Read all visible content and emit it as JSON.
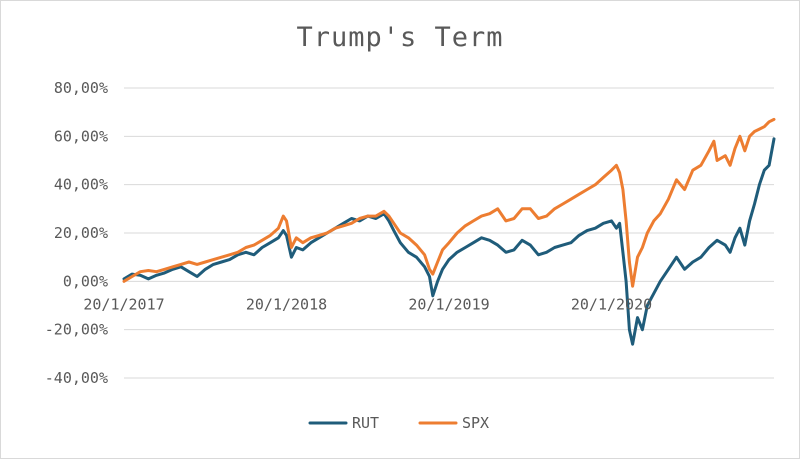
{
  "chart_data": {
    "type": "line",
    "title": "Trump's Term",
    "xlabel": "",
    "ylabel": "",
    "ylim": [
      -40,
      80
    ],
    "y_tick_step": 20,
    "y_tick_labels": [
      "80,00%",
      "60,00%",
      "40,00%",
      "20,00%",
      "0,00%",
      "-20,00%",
      "-40,00%"
    ],
    "x_tick_labels": [
      "20/1/2017",
      "20/1/2018",
      "20/1/2019",
      "20/1/2020"
    ],
    "x_ticks_at_years": [
      0,
      1,
      2,
      3
    ],
    "x_range_years": [
      0,
      4
    ],
    "grid": "horizontal",
    "legend_position": "bottom",
    "series": [
      {
        "name": "RUT",
        "color": "#1f5c7a",
        "points": [
          [
            0.0,
            1.0
          ],
          [
            0.05,
            3.0
          ],
          [
            0.1,
            2.5
          ],
          [
            0.15,
            1.0
          ],
          [
            0.2,
            2.5
          ],
          [
            0.25,
            3.5
          ],
          [
            0.3,
            5.0
          ],
          [
            0.35,
            6.0
          ],
          [
            0.4,
            4.0
          ],
          [
            0.45,
            2.0
          ],
          [
            0.5,
            5.0
          ],
          [
            0.55,
            7.0
          ],
          [
            0.6,
            8.0
          ],
          [
            0.65,
            9.0
          ],
          [
            0.7,
            11.0
          ],
          [
            0.75,
            12.0
          ],
          [
            0.8,
            11.0
          ],
          [
            0.85,
            14.0
          ],
          [
            0.9,
            16.0
          ],
          [
            0.95,
            18.0
          ],
          [
            0.98,
            21.0
          ],
          [
            1.0,
            19.0
          ],
          [
            1.03,
            10.0
          ],
          [
            1.06,
            14.0
          ],
          [
            1.1,
            13.0
          ],
          [
            1.15,
            16.0
          ],
          [
            1.2,
            18.0
          ],
          [
            1.25,
            20.0
          ],
          [
            1.3,
            22.0
          ],
          [
            1.35,
            24.0
          ],
          [
            1.4,
            26.0
          ],
          [
            1.45,
            25.0
          ],
          [
            1.5,
            27.0
          ],
          [
            1.55,
            26.0
          ],
          [
            1.6,
            28.0
          ],
          [
            1.63,
            25.0
          ],
          [
            1.66,
            21.0
          ],
          [
            1.7,
            16.0
          ],
          [
            1.75,
            12.0
          ],
          [
            1.8,
            10.0
          ],
          [
            1.85,
            6.0
          ],
          [
            1.88,
            2.0
          ],
          [
            1.9,
            -6.0
          ],
          [
            1.93,
            0.0
          ],
          [
            1.96,
            5.0
          ],
          [
            2.0,
            9.0
          ],
          [
            2.05,
            12.0
          ],
          [
            2.1,
            14.0
          ],
          [
            2.15,
            16.0
          ],
          [
            2.2,
            18.0
          ],
          [
            2.25,
            17.0
          ],
          [
            2.3,
            15.0
          ],
          [
            2.35,
            12.0
          ],
          [
            2.4,
            13.0
          ],
          [
            2.45,
            17.0
          ],
          [
            2.5,
            15.0
          ],
          [
            2.55,
            11.0
          ],
          [
            2.6,
            12.0
          ],
          [
            2.65,
            14.0
          ],
          [
            2.7,
            15.0
          ],
          [
            2.75,
            16.0
          ],
          [
            2.8,
            19.0
          ],
          [
            2.85,
            21.0
          ],
          [
            2.9,
            22.0
          ],
          [
            2.95,
            24.0
          ],
          [
            3.0,
            25.0
          ],
          [
            3.03,
            22.0
          ],
          [
            3.05,
            24.0
          ],
          [
            3.07,
            12.0
          ],
          [
            3.09,
            0.0
          ],
          [
            3.11,
            -20.0
          ],
          [
            3.13,
            -26.0
          ],
          [
            3.16,
            -15.0
          ],
          [
            3.19,
            -20.0
          ],
          [
            3.22,
            -10.0
          ],
          [
            3.26,
            -5.0
          ],
          [
            3.3,
            0.0
          ],
          [
            3.35,
            5.0
          ],
          [
            3.4,
            10.0
          ],
          [
            3.45,
            5.0
          ],
          [
            3.5,
            8.0
          ],
          [
            3.55,
            10.0
          ],
          [
            3.6,
            14.0
          ],
          [
            3.65,
            17.0
          ],
          [
            3.7,
            15.0
          ],
          [
            3.73,
            12.0
          ],
          [
            3.76,
            18.0
          ],
          [
            3.79,
            22.0
          ],
          [
            3.82,
            15.0
          ],
          [
            3.85,
            25.0
          ],
          [
            3.88,
            32.0
          ],
          [
            3.91,
            40.0
          ],
          [
            3.94,
            46.0
          ],
          [
            3.97,
            48.0
          ],
          [
            4.0,
            59.0
          ]
        ]
      },
      {
        "name": "SPX",
        "color": "#ed7d31",
        "points": [
          [
            0.0,
            0.0
          ],
          [
            0.05,
            2.0
          ],
          [
            0.1,
            4.0
          ],
          [
            0.15,
            4.5
          ],
          [
            0.2,
            4.0
          ],
          [
            0.25,
            5.0
          ],
          [
            0.3,
            6.0
          ],
          [
            0.35,
            7.0
          ],
          [
            0.4,
            8.0
          ],
          [
            0.45,
            7.0
          ],
          [
            0.5,
            8.0
          ],
          [
            0.55,
            9.0
          ],
          [
            0.6,
            10.0
          ],
          [
            0.65,
            11.0
          ],
          [
            0.7,
            12.0
          ],
          [
            0.75,
            14.0
          ],
          [
            0.8,
            15.0
          ],
          [
            0.85,
            17.0
          ],
          [
            0.9,
            19.0
          ],
          [
            0.95,
            22.0
          ],
          [
            0.98,
            27.0
          ],
          [
            1.0,
            25.0
          ],
          [
            1.03,
            14.0
          ],
          [
            1.06,
            18.0
          ],
          [
            1.1,
            16.0
          ],
          [
            1.15,
            18.0
          ],
          [
            1.2,
            19.0
          ],
          [
            1.25,
            20.0
          ],
          [
            1.3,
            22.0
          ],
          [
            1.35,
            23.0
          ],
          [
            1.4,
            24.0
          ],
          [
            1.45,
            26.0
          ],
          [
            1.5,
            27.0
          ],
          [
            1.55,
            27.0
          ],
          [
            1.6,
            29.0
          ],
          [
            1.63,
            27.0
          ],
          [
            1.66,
            24.0
          ],
          [
            1.7,
            20.0
          ],
          [
            1.75,
            18.0
          ],
          [
            1.8,
            15.0
          ],
          [
            1.85,
            11.0
          ],
          [
            1.88,
            5.0
          ],
          [
            1.9,
            3.0
          ],
          [
            1.93,
            8.0
          ],
          [
            1.96,
            13.0
          ],
          [
            2.0,
            16.0
          ],
          [
            2.05,
            20.0
          ],
          [
            2.1,
            23.0
          ],
          [
            2.15,
            25.0
          ],
          [
            2.2,
            27.0
          ],
          [
            2.25,
            28.0
          ],
          [
            2.3,
            30.0
          ],
          [
            2.35,
            25.0
          ],
          [
            2.4,
            26.0
          ],
          [
            2.45,
            30.0
          ],
          [
            2.5,
            30.0
          ],
          [
            2.55,
            26.0
          ],
          [
            2.6,
            27.0
          ],
          [
            2.65,
            30.0
          ],
          [
            2.7,
            32.0
          ],
          [
            2.75,
            34.0
          ],
          [
            2.8,
            36.0
          ],
          [
            2.85,
            38.0
          ],
          [
            2.9,
            40.0
          ],
          [
            2.95,
            43.0
          ],
          [
            3.0,
            46.0
          ],
          [
            3.03,
            48.0
          ],
          [
            3.05,
            45.0
          ],
          [
            3.07,
            38.0
          ],
          [
            3.09,
            25.0
          ],
          [
            3.11,
            8.0
          ],
          [
            3.13,
            -2.0
          ],
          [
            3.16,
            10.0
          ],
          [
            3.19,
            14.0
          ],
          [
            3.22,
            20.0
          ],
          [
            3.26,
            25.0
          ],
          [
            3.3,
            28.0
          ],
          [
            3.35,
            34.0
          ],
          [
            3.4,
            42.0
          ],
          [
            3.45,
            38.0
          ],
          [
            3.5,
            46.0
          ],
          [
            3.55,
            48.0
          ],
          [
            3.6,
            54.0
          ],
          [
            3.63,
            58.0
          ],
          [
            3.65,
            50.0
          ],
          [
            3.7,
            52.0
          ],
          [
            3.73,
            48.0
          ],
          [
            3.76,
            55.0
          ],
          [
            3.79,
            60.0
          ],
          [
            3.82,
            54.0
          ],
          [
            3.85,
            60.0
          ],
          [
            3.88,
            62.0
          ],
          [
            3.91,
            63.0
          ],
          [
            3.94,
            64.0
          ],
          [
            3.97,
            66.0
          ],
          [
            4.0,
            67.0
          ]
        ]
      }
    ]
  }
}
